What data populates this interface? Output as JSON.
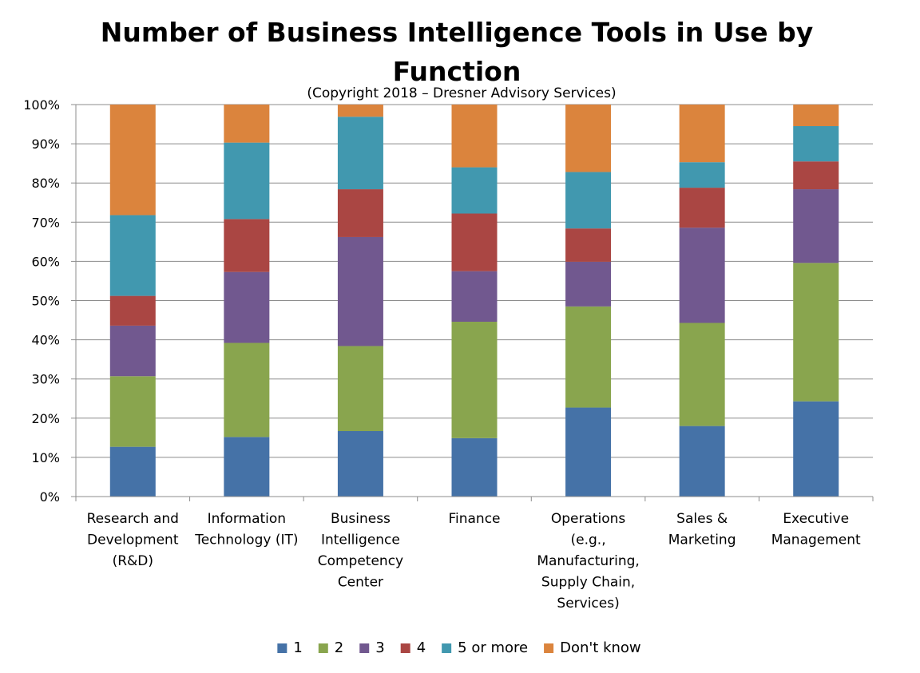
{
  "chart_data": {
    "type": "bar",
    "stacked": true,
    "percent_stacked": true,
    "title_lines": [
      "Number of Business Intelligence Tools in Use by",
      "Function"
    ],
    "subtitle": "(Copyright 2018 – Dresner Advisory Services)",
    "xlabel": "",
    "ylabel": "",
    "ylim": [
      0,
      100
    ],
    "yticks": [
      "0%",
      "10%",
      "20%",
      "30%",
      "40%",
      "50%",
      "60%",
      "70%",
      "80%",
      "90%",
      "100%"
    ],
    "grid": true,
    "legend_position": "bottom",
    "categories": [
      [
        "Research and",
        "Development",
        "(R&D)"
      ],
      [
        "Information",
        "Technology (IT)"
      ],
      [
        "Business",
        "Intelligence",
        "Competency",
        "Center"
      ],
      [
        "Finance"
      ],
      [
        "Operations",
        "(e.g.,",
        "Manufacturing,",
        "Supply Chain,",
        "Services)"
      ],
      [
        "Sales &",
        "Marketing"
      ],
      [
        "Executive",
        "Management"
      ]
    ],
    "series": [
      {
        "name": "1",
        "color": "#4572A7",
        "values": [
          12.7,
          15.2,
          16.7,
          14.9,
          22.7,
          18.0,
          24.3
        ]
      },
      {
        "name": "2",
        "color": "#89A54E",
        "values": [
          18.0,
          24.0,
          21.7,
          29.7,
          25.8,
          26.3,
          35.3
        ]
      },
      {
        "name": "3",
        "color": "#71588F",
        "values": [
          12.9,
          18.1,
          27.8,
          12.9,
          11.4,
          24.3,
          18.8
        ]
      },
      {
        "name": "4",
        "color": "#AA4643",
        "values": [
          7.6,
          13.5,
          12.2,
          14.7,
          8.5,
          10.2,
          7.1
        ]
      },
      {
        "name": "5 or more",
        "color": "#4198AF",
        "values": [
          20.6,
          19.5,
          18.5,
          11.8,
          14.4,
          6.5,
          9.0
        ]
      },
      {
        "name": "Don't know",
        "color": "#DB843D",
        "values": [
          28.2,
          9.7,
          3.1,
          16.0,
          17.2,
          14.7,
          5.5
        ]
      }
    ]
  }
}
